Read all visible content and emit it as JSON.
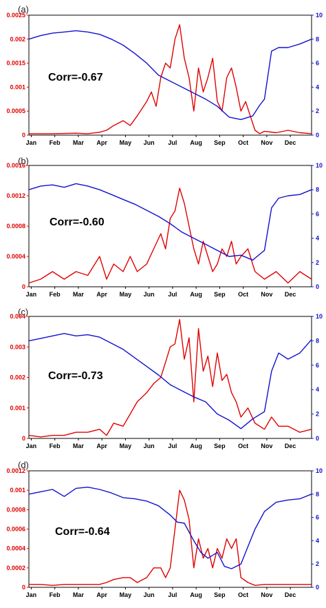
{
  "chart_data": [
    {
      "type": "line",
      "panel_label": "(a)",
      "annotation": "Corr=-0.67",
      "x_ticks": [
        "Jan",
        "Feb",
        "Mar",
        "Apr",
        "May",
        "Jun",
        "Jul",
        "Aug",
        "Sep",
        "Oct",
        "Nov",
        "Dec"
      ],
      "left_axis": {
        "ylim": [
          0,
          0.0025
        ],
        "ticks": [
          "0",
          "0.0005",
          "0.001",
          "0.0015",
          "0.002",
          "0.0025"
        ],
        "color": "#e00000"
      },
      "right_axis": {
        "ylim": [
          0,
          10
        ],
        "ticks": [
          "0",
          "2",
          "4",
          "6",
          "8",
          "10"
        ],
        "color": "#1010d0"
      },
      "series": [
        {
          "axis": "left",
          "color": "#e00000",
          "x": [
            0,
            1,
            2,
            2.5,
            3,
            3.3,
            3.6,
            4,
            4.3,
            4.6,
            5,
            5.2,
            5.4,
            5.6,
            5.8,
            6,
            6.2,
            6.4,
            6.6,
            6.8,
            7,
            7.2,
            7.4,
            7.6,
            7.8,
            8,
            8.2,
            8.4,
            8.6,
            8.8,
            9,
            9.2,
            9.4,
            9.6,
            9.8,
            10,
            10.5,
            11,
            11.5,
            12
          ],
          "y": [
            3e-05,
            3e-05,
            4e-05,
            3e-05,
            6e-05,
            0.0001,
            0.0002,
            0.0003,
            0.0002,
            0.0004,
            0.0007,
            0.0009,
            0.0006,
            0.0012,
            0.0015,
            0.0014,
            0.002,
            0.0023,
            0.0016,
            0.0012,
            0.0005,
            0.0014,
            0.0009,
            0.0012,
            0.0016,
            0.0007,
            0.0005,
            0.0012,
            0.0014,
            0.001,
            0.0005,
            0.0007,
            0.0004,
            0.0001,
            3e-05,
            8e-05,
            5e-05,
            0.0001,
            5e-05,
            3e-05
          ]
        },
        {
          "axis": "right",
          "color": "#1010d0",
          "x": [
            0,
            0.5,
            1,
            1.5,
            2,
            2.5,
            3,
            3.5,
            4,
            4.5,
            5,
            5.5,
            6,
            6.5,
            7,
            7.5,
            8,
            8.5,
            9,
            9.5,
            9.8,
            10,
            10.3,
            10.6,
            11,
            11.5,
            12
          ],
          "y": [
            8.0,
            8.3,
            8.5,
            8.6,
            8.7,
            8.6,
            8.4,
            8.0,
            7.5,
            6.8,
            6.0,
            5.0,
            4.5,
            4.0,
            3.5,
            3.0,
            2.4,
            1.5,
            1.3,
            1.6,
            2.5,
            3.0,
            7.0,
            7.3,
            7.3,
            7.6,
            8.0
          ]
        }
      ]
    },
    {
      "type": "line",
      "panel_label": "(b)",
      "annotation": "Corr=-0.60",
      "x_ticks": [
        "Jan",
        "Feb",
        "Mar",
        "Apr",
        "May",
        "Jun",
        "Jul",
        "Aug",
        "Sep",
        "Oct",
        "Nov",
        "Dec"
      ],
      "left_axis": {
        "ylim": [
          0,
          0.0016
        ],
        "ticks": [
          "0",
          "0.0004",
          "0.0008",
          "0.0012",
          "0.0016"
        ],
        "color": "#e00000"
      },
      "right_axis": {
        "ylim": [
          0,
          10
        ],
        "ticks": [
          "0",
          "2",
          "4",
          "6",
          "8",
          "10"
        ],
        "color": "#1010d0"
      },
      "series": [
        {
          "axis": "left",
          "color": "#e00000",
          "x": [
            0,
            0.5,
            1,
            1.5,
            2,
            2.5,
            3,
            3.3,
            3.6,
            4,
            4.3,
            4.6,
            5,
            5.3,
            5.6,
            5.8,
            6,
            6.2,
            6.4,
            6.6,
            6.8,
            7,
            7.2,
            7.4,
            7.6,
            7.8,
            8,
            8.2,
            8.4,
            8.6,
            8.8,
            9,
            9.3,
            9.6,
            10,
            10.5,
            11,
            11.5,
            12
          ],
          "y": [
            5e-05,
            0.0001,
            0.0002,
            0.0001,
            0.0002,
            0.00015,
            0.0004,
            0.0001,
            0.0003,
            0.0002,
            0.0004,
            0.0002,
            0.0003,
            0.0005,
            0.0007,
            0.0005,
            0.0009,
            0.001,
            0.0013,
            0.0011,
            0.0008,
            0.0005,
            0.0003,
            0.0006,
            0.0004,
            0.0002,
            0.0003,
            0.0005,
            0.0004,
            0.0006,
            0.0003,
            0.0004,
            0.0005,
            0.0002,
            0.0001,
            0.0002,
            5e-05,
            0.0002,
            0.0001
          ]
        },
        {
          "axis": "right",
          "color": "#1010d0",
          "x": [
            0,
            0.5,
            1,
            1.5,
            2,
            2.5,
            3,
            3.5,
            4,
            4.5,
            5,
            5.5,
            6,
            6.5,
            7,
            7.5,
            8,
            8.5,
            9,
            9.5,
            10,
            10.3,
            10.6,
            11,
            11.5,
            12
          ],
          "y": [
            8.0,
            8.3,
            8.4,
            8.2,
            8.5,
            8.3,
            8.0,
            7.6,
            7.2,
            6.8,
            6.3,
            5.8,
            5.2,
            4.5,
            4.0,
            3.5,
            3.0,
            2.5,
            2.6,
            2.2,
            3.0,
            6.5,
            7.3,
            7.5,
            7.6,
            8.0
          ]
        }
      ]
    },
    {
      "type": "line",
      "panel_label": "(c)",
      "annotation": "Corr=-0.73",
      "x_ticks": [
        "Jan",
        "Feb",
        "Mar",
        "Apr",
        "May",
        "Jun",
        "Jul",
        "Aug",
        "Sep",
        "Oct",
        "Nov",
        "Dec"
      ],
      "left_axis": {
        "ylim": [
          0,
          0.004
        ],
        "ticks": [
          "0",
          "0.001",
          "0.002",
          "0.003",
          "0.004"
        ],
        "color": "#e00000"
      },
      "right_axis": {
        "ylim": [
          0,
          10
        ],
        "ticks": [
          "0",
          "2",
          "4",
          "6",
          "8",
          "10"
        ],
        "color": "#1010d0"
      },
      "series": [
        {
          "axis": "left",
          "color": "#e00000",
          "x": [
            0,
            0.5,
            1,
            1.5,
            2,
            2.5,
            3,
            3.3,
            3.6,
            4,
            4.3,
            4.6,
            5,
            5.3,
            5.6,
            5.8,
            6,
            6.2,
            6.4,
            6.6,
            6.8,
            7,
            7.2,
            7.4,
            7.6,
            7.8,
            8,
            8.2,
            8.4,
            8.6,
            8.8,
            9,
            9.3,
            9.6,
            10,
            10.3,
            10.6,
            11,
            11.5,
            12
          ],
          "y": [
            0.0001,
            5e-05,
            0.0001,
            0.0001,
            0.0002,
            0.0002,
            0.0003,
            0.0001,
            0.0005,
            0.0004,
            0.0008,
            0.0012,
            0.0015,
            0.0018,
            0.002,
            0.0025,
            0.003,
            0.0031,
            0.0039,
            0.0026,
            0.0033,
            0.0012,
            0.0036,
            0.0022,
            0.0027,
            0.0017,
            0.0028,
            0.0019,
            0.0021,
            0.0015,
            0.0012,
            0.0007,
            0.001,
            0.0005,
            0.0003,
            0.0007,
            0.0004,
            0.0004,
            0.0002,
            0.0003
          ]
        },
        {
          "axis": "right",
          "color": "#1010d0",
          "x": [
            0,
            0.5,
            1,
            1.5,
            2,
            2.5,
            3,
            3.5,
            4,
            4.5,
            5,
            5.5,
            6,
            6.5,
            7,
            7.5,
            8,
            8.5,
            9,
            9.5,
            10,
            10.3,
            10.6,
            11,
            11.5,
            12
          ],
          "y": [
            8.0,
            8.2,
            8.4,
            8.6,
            8.4,
            8.5,
            8.3,
            7.8,
            7.3,
            6.6,
            5.9,
            5.2,
            4.4,
            3.9,
            3.4,
            3.0,
            2.0,
            1.5,
            0.8,
            1.6,
            2.2,
            5.5,
            7.0,
            6.5,
            7.0,
            8.1
          ]
        }
      ]
    },
    {
      "type": "line",
      "panel_label": "(d)",
      "annotation": "Corr=-0.64",
      "x_ticks": [
        "Jan",
        "Feb",
        "Mar",
        "Apr",
        "May",
        "Jun",
        "Jul",
        "Aug",
        "Sep",
        "Oct",
        "Nov",
        "Dec"
      ],
      "left_axis": {
        "ylim": [
          0,
          0.0012
        ],
        "ticks": [
          "0",
          "0.0002",
          "0.0004",
          "0.0006",
          "0.0008",
          "0.001",
          "0.0012"
        ],
        "color": "#e00000"
      },
      "right_axis": {
        "ylim": [
          0,
          10
        ],
        "ticks": [
          "0",
          "2",
          "4",
          "6",
          "8",
          "10"
        ],
        "color": "#1010d0"
      },
      "series": [
        {
          "axis": "left",
          "color": "#e00000",
          "x": [
            0,
            0.5,
            1,
            1.5,
            2,
            2.5,
            3,
            3.3,
            3.6,
            4,
            4.3,
            4.6,
            5,
            5.3,
            5.6,
            5.8,
            6,
            6.2,
            6.4,
            6.6,
            6.8,
            7,
            7.2,
            7.4,
            7.6,
            7.8,
            8,
            8.2,
            8.4,
            8.6,
            8.8,
            9,
            9.3,
            9.6,
            10,
            10.5,
            11,
            11.5,
            12
          ],
          "y": [
            3e-05,
            3e-05,
            2e-05,
            3e-05,
            3e-05,
            3e-05,
            3e-05,
            5e-05,
            8e-05,
            0.0001,
            0.0001,
            5e-05,
            0.0001,
            0.0002,
            0.0002,
            0.0001,
            0.0002,
            0.0006,
            0.001,
            0.0009,
            0.0007,
            0.0002,
            0.0005,
            0.0003,
            0.0004,
            0.0002,
            0.0004,
            0.0003,
            0.0005,
            0.0004,
            0.0005,
            0.0001,
            5e-05,
            2e-05,
            3e-05,
            3e-05,
            3e-05,
            3e-05,
            3e-05
          ]
        },
        {
          "axis": "right",
          "color": "#1010d0",
          "x": [
            0,
            0.5,
            1,
            1.5,
            2,
            2.5,
            3,
            3.5,
            4,
            4.5,
            5,
            5.5,
            6,
            6.3,
            6.6,
            7,
            7.3,
            7.6,
            8,
            8.3,
            8.6,
            9,
            9.3,
            9.6,
            10,
            10.5,
            11,
            11.5,
            12
          ],
          "y": [
            8.0,
            8.2,
            8.4,
            7.8,
            8.5,
            8.6,
            8.4,
            8.1,
            7.7,
            7.6,
            7.4,
            7.0,
            6.2,
            5.6,
            5.5,
            4.0,
            3.0,
            2.5,
            3.0,
            1.8,
            1.6,
            2.0,
            3.5,
            5.0,
            6.5,
            7.3,
            7.5,
            7.6,
            8.0
          ]
        }
      ]
    }
  ]
}
